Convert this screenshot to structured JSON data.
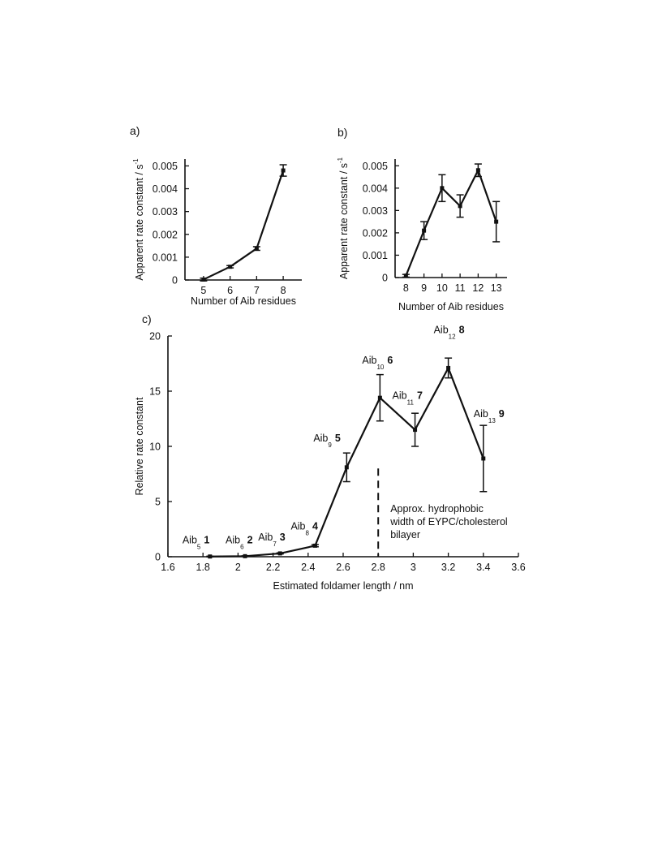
{
  "chart_data": [
    {
      "panel_label": "a)",
      "type": "line",
      "xlabel": "Number of Aib residues",
      "ylabel": "Apparent rate constant / s",
      "ylabel_sup": "-1",
      "xlim": [
        4.3,
        8.7
      ],
      "ylim": [
        0,
        0.0053
      ],
      "x_ticks": [
        5,
        6,
        7,
        8
      ],
      "y_ticks": [
        0,
        0.001,
        0.002,
        0.003,
        0.004,
        0.005
      ],
      "y_tick_labels": [
        "0",
        "0.001",
        "0.002",
        "0.003",
        "0.004",
        "0.005"
      ],
      "series": [
        {
          "x": [
            5,
            6,
            7,
            8
          ],
          "y": [
            2e-05,
            0.00058,
            0.00138,
            0.0048
          ],
          "err": [
            6e-05,
            5e-05,
            8e-05,
            0.00025
          ]
        }
      ]
    },
    {
      "panel_label": "b)",
      "type": "line",
      "xlabel": "Number of Aib residues",
      "ylabel": "Apparent rate constant / s",
      "ylabel_sup": "-1",
      "xlim": [
        7.4,
        13.6
      ],
      "ylim": [
        0,
        0.0053
      ],
      "x_ticks": [
        8,
        9,
        10,
        11,
        12,
        13
      ],
      "y_ticks": [
        0,
        0.001,
        0.002,
        0.003,
        0.004,
        0.005
      ],
      "y_tick_labels": [
        "0",
        "0.001",
        "0.002",
        "0.003",
        "0.004",
        "0.005"
      ],
      "series": [
        {
          "x": [
            8,
            9,
            10,
            11,
            12,
            13
          ],
          "y": [
            8e-05,
            0.0021,
            0.004,
            0.0032,
            0.0048,
            0.0025
          ],
          "err": [
            6e-05,
            0.0004,
            0.0006,
            0.0005,
            0.00028,
            0.0009
          ]
        }
      ]
    },
    {
      "panel_label": "c)",
      "type": "line",
      "xlabel": "Estimated foldamer length / nm",
      "ylabel": "Relative rate constant",
      "xlim": [
        1.6,
        3.6
      ],
      "ylim": [
        0,
        20
      ],
      "x_ticks": [
        1.6,
        1.8,
        2,
        2.2,
        2.4,
        2.6,
        2.8,
        3,
        3.2,
        3.4,
        3.6
      ],
      "x_tick_labels": [
        "1.6",
        "1.8",
        "2",
        "2.2",
        "2.4",
        "2.6",
        "2.8",
        "3",
        "3.2",
        "3.4",
        "3.6"
      ],
      "y_ticks": [
        0,
        5,
        10,
        15,
        20
      ],
      "y_tick_labels": [
        "0",
        "5",
        "10",
        "15",
        "20"
      ],
      "series": [
        {
          "x": [
            1.84,
            2.04,
            2.24,
            2.44,
            2.62,
            2.81,
            3.01,
            3.2,
            3.4
          ],
          "y": [
            0.02,
            0.05,
            0.3,
            1.0,
            8.1,
            14.4,
            11.5,
            17.1,
            8.9
          ],
          "err": [
            0.03,
            0.03,
            0.05,
            0.1,
            1.3,
            2.1,
            1.5,
            0.9,
            3.0
          ]
        }
      ],
      "point_labels": [
        {
          "prefix": "Aib",
          "sub": "5",
          "num": "1"
        },
        {
          "prefix": "Aib",
          "sub": "6",
          "num": "2"
        },
        {
          "prefix": "Aib",
          "sub": "7",
          "num": "3"
        },
        {
          "prefix": "Aib",
          "sub": "8",
          "num": "4"
        },
        {
          "prefix": "Aib",
          "sub": "9",
          "num": "5"
        },
        {
          "prefix": "Aib",
          "sub": "10",
          "num": "6"
        },
        {
          "prefix": "Aib",
          "sub": "11",
          "num": "7"
        },
        {
          "prefix": "Aib",
          "sub": "12",
          "num": "8"
        },
        {
          "prefix": "Aib",
          "sub": "13",
          "num": "9"
        }
      ],
      "reference_line": {
        "x": 2.8,
        "y_range": [
          0,
          8.0
        ]
      },
      "annotation": [
        "Approx. hydrophobic",
        "width of EYPC/cholesterol",
        "bilayer"
      ]
    }
  ]
}
